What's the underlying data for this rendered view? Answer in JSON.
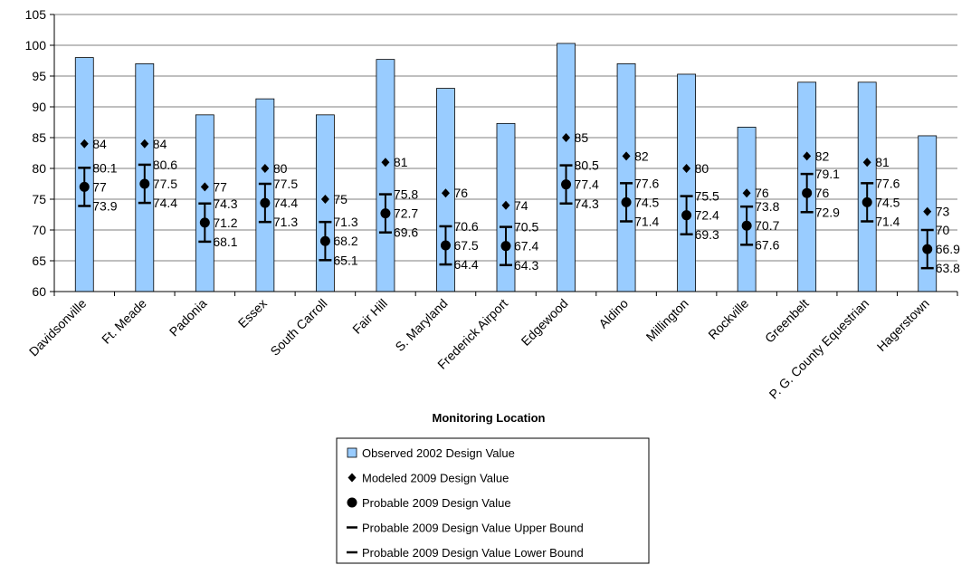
{
  "chart_data": {
    "type": "bar",
    "xlabel": "Monitoring Location",
    "ylabel": "",
    "ylim": [
      60,
      105
    ],
    "yticks": [
      60,
      65,
      70,
      75,
      80,
      85,
      90,
      95,
      100,
      105
    ],
    "grid": true,
    "legend_position": "bottom",
    "categories": [
      "Davidsonville",
      "Ft. Meade",
      "Padonia",
      "Essex",
      "South Carroll",
      "Fair Hill",
      "S. Maryland",
      "Frederick Airport",
      "Edgewood",
      "Aldino",
      "Millington",
      "Rockville",
      "Greenbelt",
      "P. G. County Equestrian",
      "Hagerstown"
    ],
    "series": [
      {
        "name": "Observed 2002 Design Value",
        "kind": "bar",
        "color": "#99CCFF",
        "values": [
          98,
          97,
          88.7,
          91.3,
          88.7,
          97.7,
          93,
          87.3,
          100.3,
          97,
          95.3,
          86.7,
          94,
          94,
          85.3
        ]
      },
      {
        "name": "Modeled 2009 Design Value",
        "kind": "diamond",
        "values": [
          84,
          84,
          77,
          80,
          75,
          81,
          76,
          74,
          85,
          82,
          80,
          76,
          82,
          81,
          73
        ]
      },
      {
        "name": "Probable 2009 Design Value",
        "kind": "circle",
        "values": [
          77,
          77.5,
          71.2,
          74.4,
          68.2,
          72.7,
          67.5,
          67.4,
          77.4,
          74.5,
          72.4,
          70.7,
          76,
          74.5,
          66.9
        ]
      },
      {
        "name": "Probable 2009 Design Value Upper Bound",
        "kind": "dash",
        "values": [
          80.1,
          80.6,
          74.3,
          77.5,
          71.3,
          75.8,
          70.6,
          70.5,
          80.5,
          77.6,
          75.5,
          73.8,
          79.1,
          77.6,
          70
        ]
      },
      {
        "name": "Probable 2009 Design Value Lower Bound",
        "kind": "dash",
        "values": [
          73.9,
          74.4,
          68.1,
          71.3,
          65.1,
          69.6,
          64.4,
          64.3,
          74.3,
          71.4,
          69.3,
          67.6,
          72.9,
          71.4,
          63.8
        ]
      }
    ]
  }
}
